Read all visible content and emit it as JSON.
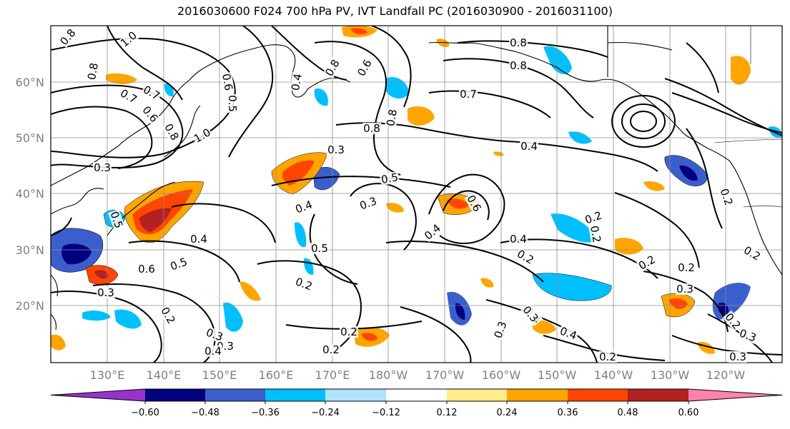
{
  "title": "2016030600 F024 700 hPa PV, IVT Landfall PC (2016030900 - 2016031100)",
  "lat_labels": [
    "60°N",
    "50°N",
    "40°N",
    "30°N",
    "20°N"
  ],
  "lon_labels": [
    "130°E",
    "140°E",
    "150°E",
    "160°E",
    "170°E",
    "180°W",
    "170°W",
    "160°W",
    "150°W",
    "140°W",
    "130°W",
    "120°W"
  ],
  "colorbar": {
    "tick_labels": [
      "−0.60",
      "−0.48",
      "−0.36",
      "−0.24",
      "−0.12",
      "0.12",
      "0.24",
      "0.36",
      "0.48",
      "0.60"
    ],
    "colors": [
      "#9932cc",
      "#000080",
      "#3a5fcd",
      "#00bfff",
      "#b0e2ff",
      "#ffffff",
      "#ffec8b",
      "#ffa500",
      "#ff4500",
      "#b22222",
      "#ff82ab"
    ]
  },
  "contour_labels": [
    "0.8",
    "1.0",
    "0.8",
    "0.7",
    "0.6",
    "0.8",
    "0.6",
    "0.5",
    "0.7",
    "0.8",
    "0.4",
    "0.6",
    "0.8",
    "0.8",
    "0.7",
    "0.8",
    "0.8",
    "0.4",
    "0.4",
    "0.2",
    "0.2",
    "0.5",
    "0.3",
    "0.5",
    "0.3",
    "1.0",
    "0.3",
    "0.4",
    "0.5",
    "0.3",
    "0.4",
    "0.6",
    "0.4",
    "0.2",
    "0.4",
    "0.2",
    "0.2",
    "0.3",
    "0.2",
    "0.5",
    "0.6",
    "0.3",
    "0.3",
    "0.2",
    "0.2",
    "0.2",
    "0.3",
    "0.2",
    "0.3",
    "0.4",
    "0.2",
    "0.4",
    "0.3",
    "0.2",
    "0.2",
    "0.2",
    "0.3"
  ]
}
